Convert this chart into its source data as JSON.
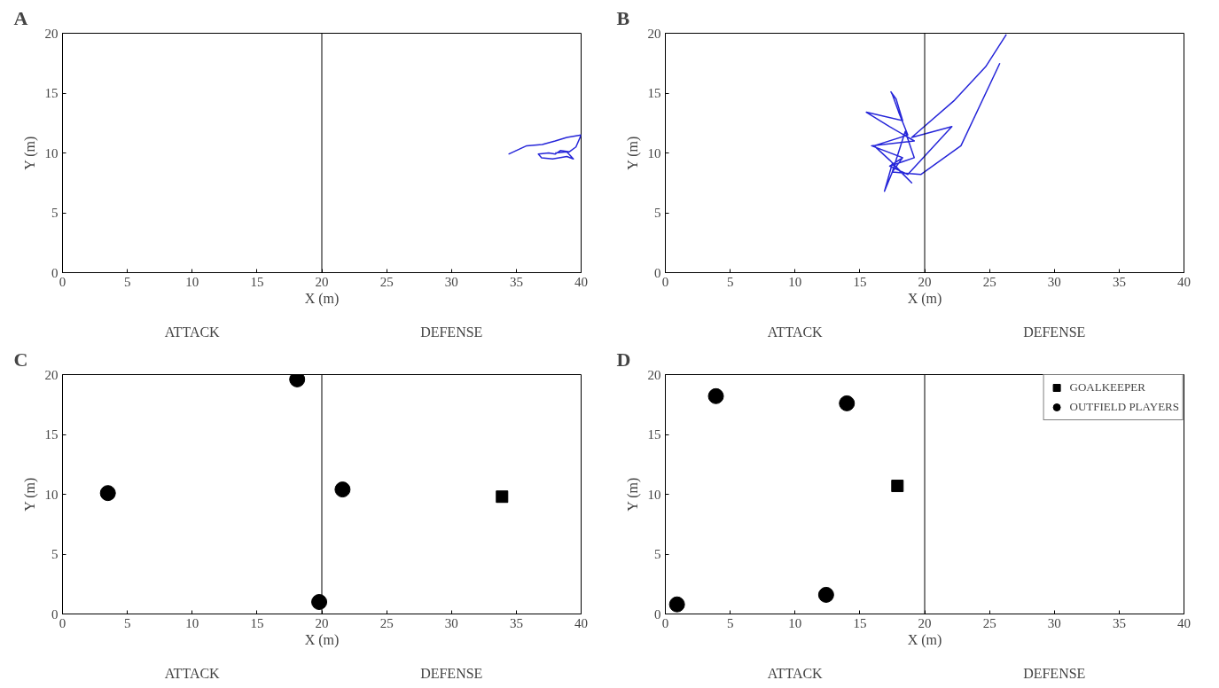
{
  "chart_data": [
    {
      "type": "line",
      "title": "A",
      "xlabel": "X (m)",
      "ylabel": "Y (m)",
      "xlim": [
        0,
        40
      ],
      "ylim": [
        0,
        20
      ],
      "xticks": [
        0,
        5,
        10,
        15,
        20,
        25,
        30,
        35,
        40
      ],
      "yticks": [
        0,
        5,
        10,
        15,
        20
      ],
      "grid": false,
      "legend": false,
      "line_style": "solid",
      "annotations": [
        "ATTACK",
        "DEFENSE"
      ],
      "ref_lines": [
        {
          "axis": "x",
          "value": 20,
          "color": "#000000"
        }
      ],
      "series": [
        {
          "color": "#2626d9",
          "x": [
            34.4,
            35.8,
            37.0,
            38.0,
            38.9,
            40.0,
            39.6,
            39.1,
            38.4,
            38.0,
            37.5,
            36.7,
            36.95,
            37.8,
            38.9,
            39.4,
            38.9,
            38.0
          ],
          "values": [
            9.9,
            10.6,
            10.7,
            11.0,
            11.3,
            11.5,
            10.5,
            10.1,
            10.2,
            9.9,
            10.0,
            9.9,
            9.6,
            9.5,
            9.7,
            9.5,
            10.1,
            10.0
          ]
        }
      ]
    },
    {
      "type": "line",
      "title": "B",
      "xlabel": "X (m)",
      "ylabel": "Y (m)",
      "xlim": [
        0,
        40
      ],
      "ylim": [
        0,
        20
      ],
      "xticks": [
        0,
        5,
        10,
        15,
        20,
        25,
        30,
        35,
        40
      ],
      "yticks": [
        0,
        5,
        10,
        15,
        20
      ],
      "grid": false,
      "legend": false,
      "line_style": "solid",
      "annotations": [
        "ATTACK",
        "DEFENSE"
      ],
      "ref_lines": [
        {
          "axis": "x",
          "value": 20,
          "color": "#000000"
        }
      ],
      "series": [
        {
          "color": "#2626d9",
          "x": [
            25.8,
            22.8,
            19.7,
            17.5,
            18.5,
            19.2,
            17.3,
            18.3,
            15.9,
            19.2,
            17.3,
            15.5,
            18.3,
            17.8,
            17.4,
            17.5,
            18.0,
            18.7,
            16.1,
            17.3,
            19.0,
            17.5,
            16.9,
            17.5,
            18.3,
            17.3,
            18.7,
            22.1,
            19.0,
            22.3,
            24.7,
            26.3
          ],
          "values": [
            17.5,
            10.6,
            8.2,
            8.4,
            11.8,
            9.6,
            8.9,
            9.6,
            10.6,
            11.0,
            12.2,
            13.4,
            12.7,
            14.5,
            15.1,
            14.9,
            13.4,
            11.5,
            10.6,
            9.4,
            7.5,
            9.1,
            6.8,
            8.4,
            9.6,
            8.9,
            8.2,
            12.2,
            11.3,
            14.4,
            17.2,
            19.9
          ]
        }
      ]
    },
    {
      "type": "scatter",
      "title": "C",
      "xlabel": "X (m)",
      "ylabel": "Y (m)",
      "xlim": [
        0,
        40
      ],
      "ylim": [
        0,
        20
      ],
      "xticks": [
        0,
        5,
        10,
        15,
        20,
        25,
        30,
        35,
        40
      ],
      "yticks": [
        0,
        5,
        10,
        15,
        20
      ],
      "grid": false,
      "legend": false,
      "annotations": [
        "ATTACK",
        "DEFENSE"
      ],
      "ref_lines": [
        {
          "axis": "x",
          "value": 20,
          "color": "#000000"
        }
      ],
      "series": [
        {
          "color": "#000000",
          "marker": "square",
          "x": [
            33.9
          ],
          "values": [
            9.8
          ]
        },
        {
          "color": "#000000",
          "marker": "circle",
          "x": [
            3.5,
            18.1,
            21.6,
            19.8
          ],
          "values": [
            10.1,
            19.6,
            10.4,
            1.0
          ]
        }
      ]
    },
    {
      "type": "scatter",
      "title": "D",
      "xlabel": "X (m)",
      "ylabel": "Y (m)",
      "xlim": [
        0,
        40
      ],
      "ylim": [
        0,
        20
      ],
      "xticks": [
        0,
        5,
        10,
        15,
        20,
        25,
        30,
        35,
        40
      ],
      "yticks": [
        0,
        5,
        10,
        15,
        20
      ],
      "grid": false,
      "legend": "top right",
      "annotations": [
        "ATTACK",
        "DEFENSE"
      ],
      "ref_lines": [
        {
          "axis": "x",
          "value": 20,
          "color": "#000000"
        }
      ],
      "series": [
        {
          "name": "GOALKEEPER",
          "color": "#000000",
          "marker": "square",
          "x": [
            17.9
          ],
          "values": [
            10.7
          ]
        },
        {
          "name": "OUTFIELD PLAYERS",
          "color": "#000000",
          "marker": "circle",
          "x": [
            3.9,
            14.0,
            12.4,
            0.9
          ],
          "values": [
            18.2,
            17.6,
            1.6,
            0.8
          ]
        }
      ]
    }
  ]
}
